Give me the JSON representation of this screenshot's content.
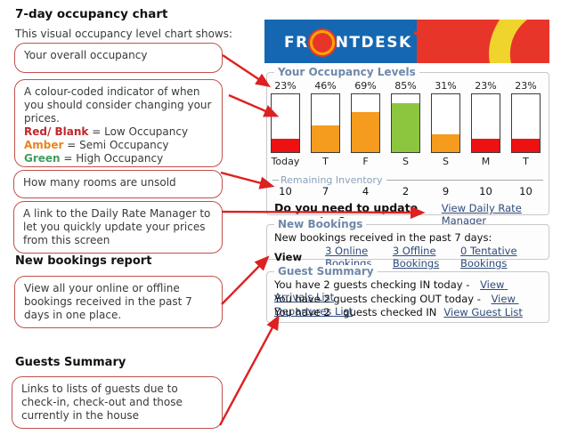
{
  "page": {
    "title": "7-day occupancy chart",
    "subtitle": "This visual occupancy level chart shows:"
  },
  "annotations": {
    "overall": "Your overall occupancy",
    "colour_intro": "A colour-coded indicator of when you should consider changing your prices.",
    "legend": [
      {
        "label": "Red/ Blank",
        "meaning": " = Low Occupancy",
        "color": "#c2262a"
      },
      {
        "label": "Amber",
        "meaning": " = Semi Occupancy",
        "color": "#e8851d"
      },
      {
        "label": "Green",
        "meaning": " = High Occupancy",
        "color": "#3f9e5c"
      }
    ],
    "unsold": "How many rooms are unsold",
    "rate_link": "A link to the Daily Rate Manager to let you quickly update your prices from this screen",
    "new_bookings_heading": "New bookings report",
    "new_bookings": "View all your online or offline bookings received in the past 7 days in one place.",
    "guests_heading": "Guests Summary",
    "guests": "Links to lists of guests due to check-in, check-out and those currently in the house"
  },
  "app": {
    "brand": {
      "pre": "FR",
      "post": "NTDESK"
    },
    "colors": {
      "banner_blue": "#1667b1",
      "banner_red": "#e8352a",
      "banner_yellow": "#f0d42e",
      "low": "#ee1111",
      "semi": "#f59b1e",
      "high": "#8cc63e",
      "legend_blue": "#7089a9",
      "link_navy": "#2e4a7a",
      "arrow_red": "#dd2020"
    },
    "occupancy": {
      "legend": "Your Occupancy Levels",
      "days": [
        {
          "day": "Today",
          "pct": "23%",
          "value": 23,
          "color": "#ee1111",
          "remaining": "10"
        },
        {
          "day": "T",
          "pct": "46%",
          "value": 46,
          "color": "#f59b1e",
          "remaining": "7"
        },
        {
          "day": "F",
          "pct": "69%",
          "value": 69,
          "color": "#f59b1e",
          "remaining": "4"
        },
        {
          "day": "S",
          "pct": "85%",
          "value": 85,
          "color": "#8cc63e",
          "remaining": "2"
        },
        {
          "day": "S",
          "pct": "31%",
          "value": 31,
          "color": "#f59b1e",
          "remaining": "9"
        },
        {
          "day": "M",
          "pct": "23%",
          "value": 23,
          "color": "#ee1111",
          "remaining": "10"
        },
        {
          "day": "T",
          "pct": "23%",
          "value": 23,
          "color": "#ee1111",
          "remaining": "10"
        }
      ],
      "remaining_label": "Remaining Inventory",
      "rates_question": "Do you need to update your rates?",
      "rates_link": "View Daily Rate Manager"
    },
    "new_bookings": {
      "legend": "New Bookings",
      "intro": "New bookings received in the past 7 days:",
      "view_label": "View",
      "links": [
        "3 Online Bookings",
        "3 Offline Bookings",
        "0 Tentative Bookings"
      ]
    },
    "guest_summary": {
      "legend": "Guest Summary",
      "rows": [
        {
          "text": "You have 2 guests checking IN today - ",
          "link": "View Arrivals List"
        },
        {
          "text": "You have 2 guests checking OUT today - ",
          "link": "View Departures List"
        },
        {
          "text": "You have 2    guests checked IN",
          "link": "View Guest List"
        }
      ]
    }
  },
  "chart_data": {
    "type": "bar",
    "title": "Your Occupancy Levels",
    "categories": [
      "Today",
      "T",
      "F",
      "S",
      "S",
      "M",
      "T"
    ],
    "series": [
      {
        "name": "Occupancy %",
        "values": [
          23,
          46,
          69,
          85,
          31,
          23,
          23
        ]
      },
      {
        "name": "Remaining Inventory",
        "values": [
          10,
          7,
          4,
          2,
          9,
          10,
          10
        ]
      }
    ],
    "bar_colors": [
      "#ee1111",
      "#f59b1e",
      "#f59b1e",
      "#8cc63e",
      "#f59b1e",
      "#ee1111",
      "#ee1111"
    ],
    "ylim": [
      0,
      100
    ],
    "grid": false,
    "legend_position": "none"
  }
}
